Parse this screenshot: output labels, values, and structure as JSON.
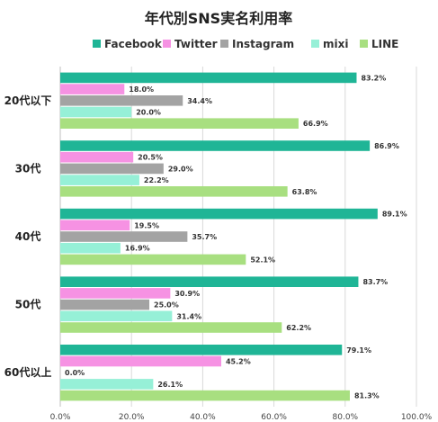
{
  "chart_data": {
    "type": "bar",
    "orientation": "horizontal",
    "title": "年代別SNS実名利用率",
    "legend_position": "top",
    "categories": [
      "20代以下",
      "30代",
      "40代",
      "50代",
      "60代以上"
    ],
    "series": [
      {
        "name": "Facebook",
        "color": "#1fb596",
        "values": [
          83.2,
          86.9,
          89.1,
          83.7,
          79.1
        ],
        "labels": [
          "83.2%",
          "86.9%",
          "89.1%",
          "83.7%",
          "79.1%"
        ]
      },
      {
        "name": "Twitter",
        "color": "#f692e3",
        "values": [
          18.0,
          20.5,
          19.5,
          30.9,
          45.2
        ],
        "labels": [
          "18.0%",
          "20.5%",
          "19.5%",
          "30.9%",
          "45.2%"
        ]
      },
      {
        "name": "Instagram",
        "color": "#a3a3a3",
        "values": [
          34.4,
          29.0,
          35.7,
          25.0,
          0.0
        ],
        "labels": [
          "34.4%",
          "29.0%",
          "35.7%",
          "25.0%",
          "0.0%"
        ]
      },
      {
        "name": "mixi",
        "color": "#96f0d7",
        "values": [
          20.0,
          22.2,
          16.9,
          31.4,
          26.1
        ],
        "labels": [
          "20.0%",
          "22.2%",
          "16.9%",
          "31.4%",
          "26.1%"
        ]
      },
      {
        "name": "LINE",
        "color": "#a8df80",
        "values": [
          66.9,
          63.8,
          52.1,
          62.2,
          81.3
        ],
        "labels": [
          "66.9%",
          "63.8%",
          "52.1%",
          "62.2%",
          "81.3%"
        ]
      }
    ],
    "xlim": [
      0,
      100
    ],
    "xticks": [
      "0.0%",
      "20.0%",
      "40.0%",
      "60.0%",
      "80.0%",
      "100.0%"
    ],
    "grid": true
  }
}
